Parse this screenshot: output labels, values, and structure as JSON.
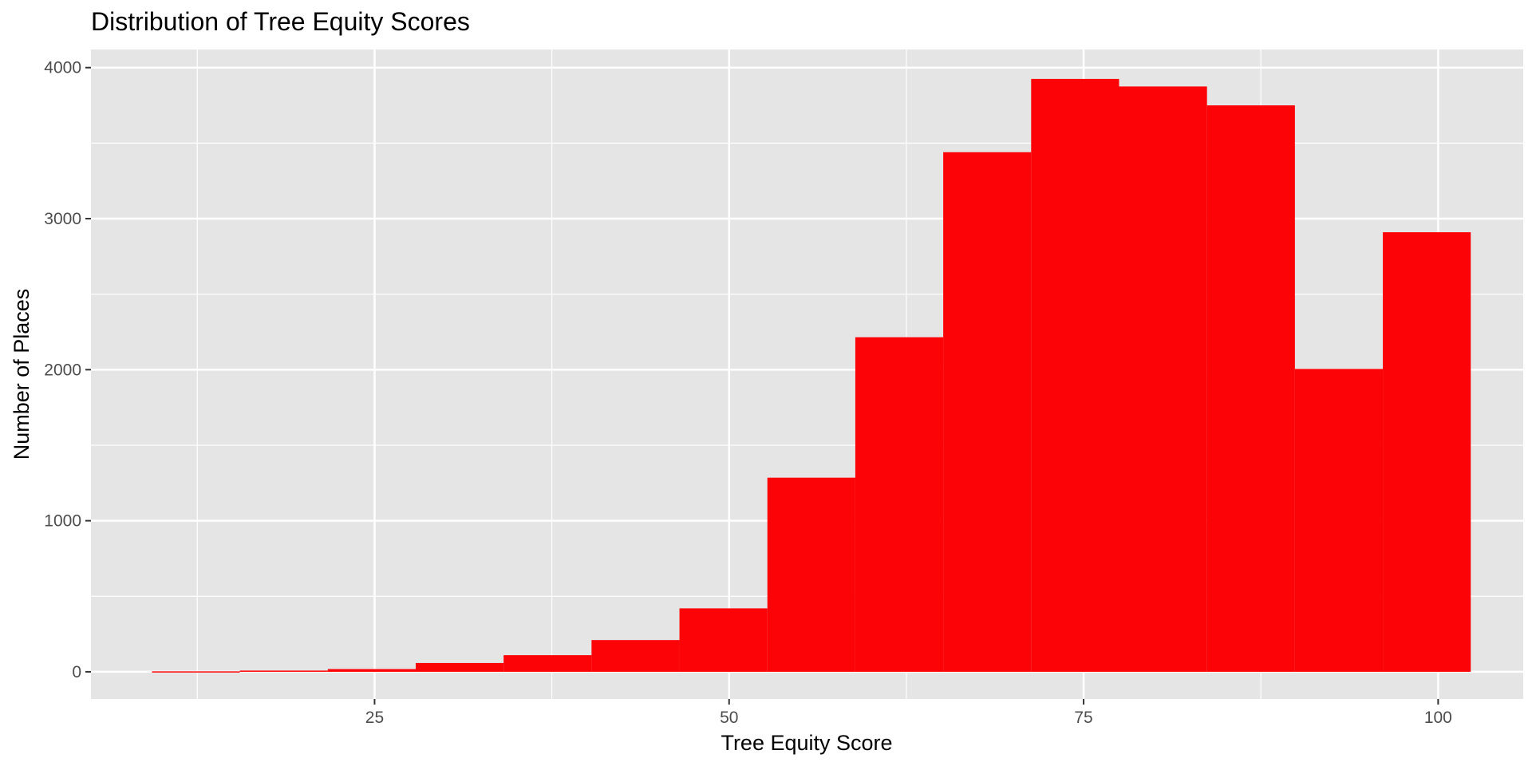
{
  "chart_data": {
    "type": "bar",
    "title": "Distribution of Tree Equity Scores",
    "xlabel": "Tree Equity Score",
    "ylabel": "Number of Places",
    "x_ticks": [
      25,
      50,
      75,
      100
    ],
    "y_ticks": [
      0,
      1000,
      2000,
      3000,
      4000
    ],
    "xlim": [
      5.0,
      106.0
    ],
    "ylim": [
      -180,
      4120
    ],
    "grid": true,
    "bin_width": 6.2,
    "bins": [
      {
        "x_start": 9.3,
        "x_end": 15.5,
        "count": 3
      },
      {
        "x_start": 15.5,
        "x_end": 21.7,
        "count": 8
      },
      {
        "x_start": 21.7,
        "x_end": 27.9,
        "count": 18
      },
      {
        "x_start": 27.9,
        "x_end": 34.1,
        "count": 58
      },
      {
        "x_start": 34.1,
        "x_end": 40.3,
        "count": 110
      },
      {
        "x_start": 40.3,
        "x_end": 46.5,
        "count": 210
      },
      {
        "x_start": 46.5,
        "x_end": 52.7,
        "count": 420
      },
      {
        "x_start": 52.7,
        "x_end": 58.9,
        "count": 1285
      },
      {
        "x_start": 58.9,
        "x_end": 65.1,
        "count": 2215
      },
      {
        "x_start": 65.1,
        "x_end": 71.3,
        "count": 3440
      },
      {
        "x_start": 71.3,
        "x_end": 77.5,
        "count": 3925
      },
      {
        "x_start": 77.5,
        "x_end": 83.7,
        "count": 3875
      },
      {
        "x_start": 83.7,
        "x_end": 89.9,
        "count": 3750
      },
      {
        "x_start": 89.9,
        "x_end": 96.1,
        "count": 2005
      },
      {
        "x_start": 96.1,
        "x_end": 102.3,
        "count": 2910
      }
    ],
    "colors": {
      "bar": "#FC0307",
      "panel": "#E5E5E5",
      "grid": "#FFFFFF"
    }
  }
}
